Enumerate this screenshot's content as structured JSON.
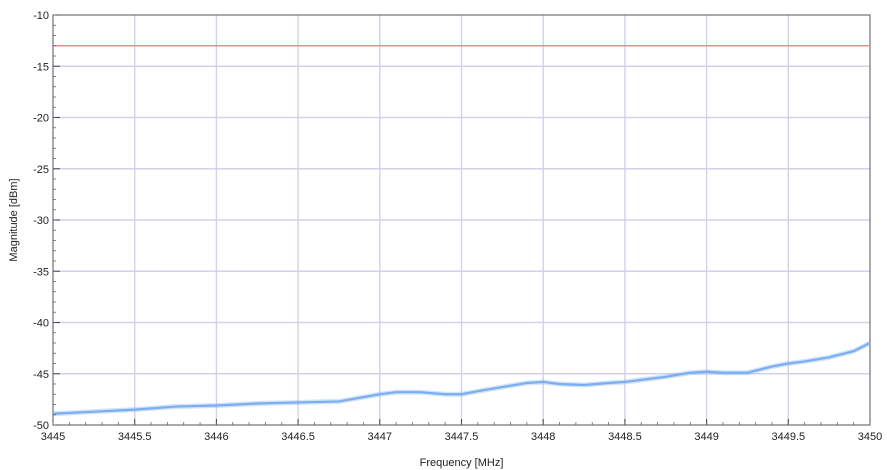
{
  "chart_data": {
    "type": "line",
    "xlabel": "Frequency [MHz]",
    "ylabel": "Magnitude [dBm]",
    "xlim": [
      3445,
      3450
    ],
    "ylim": [
      -50,
      -10
    ],
    "x_ticks": [
      "3445",
      "3445.5",
      "3446",
      "3446.5",
      "3447",
      "3447.5",
      "3448",
      "3448.5",
      "3449",
      "3449.5",
      "3450"
    ],
    "y_ticks": [
      "-10",
      "-15",
      "-20",
      "-25",
      "-30",
      "-35",
      "-40",
      "-45",
      "-50"
    ],
    "grid": true,
    "series": [
      {
        "color": "#7aaef0",
        "x": [
          3445.0,
          3445.25,
          3445.5,
          3445.75,
          3446.0,
          3446.25,
          3446.5,
          3446.75,
          3447.0,
          3447.1,
          3447.25,
          3447.4,
          3447.5,
          3447.6,
          3447.75,
          3447.9,
          3448.0,
          3448.1,
          3448.25,
          3448.4,
          3448.5,
          3448.6,
          3448.75,
          3448.9,
          3449.0,
          3449.1,
          3449.25,
          3449.4,
          3449.5,
          3449.6,
          3449.75,
          3449.9,
          3450.0
        ],
        "y": [
          -48.9,
          -48.7,
          -48.5,
          -48.2,
          -48.1,
          -47.9,
          -47.8,
          -47.7,
          -47.0,
          -46.8,
          -46.8,
          -47.0,
          -47.0,
          -46.7,
          -46.3,
          -45.9,
          -45.8,
          -46.0,
          -46.1,
          -45.9,
          -45.8,
          -45.6,
          -45.3,
          -44.9,
          -44.8,
          -44.9,
          -44.9,
          -44.3,
          -44.0,
          -43.8,
          -43.4,
          -42.8,
          -42.0
        ]
      },
      {
        "color": "#f08a8a",
        "x": [
          3445,
          3450
        ],
        "y": [
          -13,
          -13
        ]
      }
    ]
  }
}
